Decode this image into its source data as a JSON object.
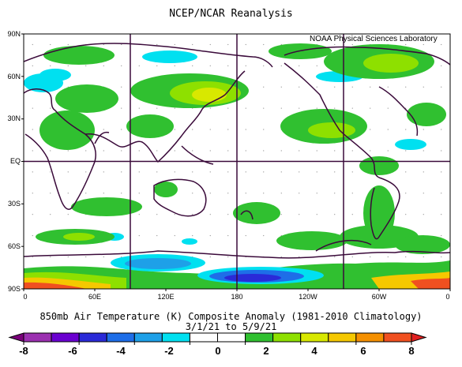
{
  "title": "NCEP/NCAR Reanalysis",
  "credit": "NOAA Physical Sciences Laboratory",
  "lat_labels": [
    "90N",
    "60N",
    "30N",
    "EQ",
    "30S",
    "60S",
    "90S"
  ],
  "lon_labels": [
    "0",
    "60E",
    "120E",
    "180",
    "120W",
    "60W",
    "0"
  ],
  "caption_line1": "850mb Air Temperature (K) Composite Anomaly (1981-2010 Climatology)",
  "caption_line2": "3/1/21  to 5/9/21",
  "colorbar": {
    "labels": [
      "-8",
      "-6",
      "-4",
      "-2",
      "0",
      "2",
      "4",
      "6",
      "8"
    ],
    "colors": [
      "#7a007a",
      "#9b30b0",
      "#6a00d0",
      "#2a2ad8",
      "#1e6ee8",
      "#1ea0e8",
      "#00e0f0",
      "#ffffff",
      "#ffffff",
      "#30c030",
      "#8ee000",
      "#d8e800",
      "#f5c800",
      "#f59000",
      "#f05020",
      "#e02020"
    ]
  },
  "colors": {
    "coast": "#3a0a3a",
    "grid": "#3a0a3a"
  }
}
